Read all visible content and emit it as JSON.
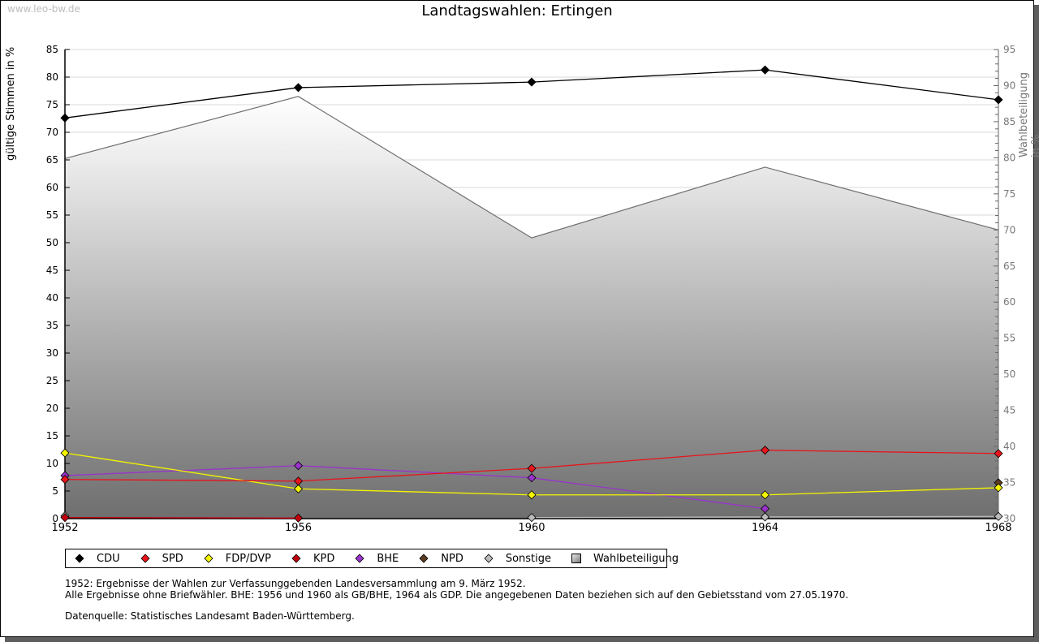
{
  "watermark": "www.leo-bw.de",
  "chart_data": {
    "type": "line",
    "title": "Landtagswahlen: Ertingen",
    "xlabel": "",
    "ylabel": "gültige Stimmen in %",
    "ylabel_right": "Wahlbeteiligung in %",
    "categories": [
      "1952",
      "1956",
      "1960",
      "1964",
      "1968"
    ],
    "ylim": [
      0,
      85
    ],
    "ylim_right": [
      30,
      95
    ],
    "yticks": [
      0,
      5,
      10,
      15,
      20,
      25,
      30,
      35,
      40,
      45,
      50,
      55,
      60,
      65,
      70,
      75,
      80,
      85
    ],
    "yticks_right": [
      30,
      35,
      40,
      45,
      50,
      55,
      60,
      65,
      70,
      75,
      80,
      85,
      90,
      95
    ],
    "grid": true,
    "legend_position": "bottom",
    "series": [
      {
        "name": "Wahlbeteiligung",
        "axis": "right",
        "kind": "area",
        "color": "#808080",
        "values": [
          79.9,
          88.5,
          68.9,
          78.7,
          70.0
        ]
      },
      {
        "name": "CDU",
        "axis": "left",
        "color": "#000000",
        "values": [
          72.6,
          78.1,
          79.1,
          81.3,
          75.9
        ]
      },
      {
        "name": "SPD",
        "axis": "left",
        "color": "#e8141c",
        "values": [
          7.1,
          6.8,
          9.1,
          12.4,
          11.8
        ]
      },
      {
        "name": "FDP/DVP",
        "axis": "left",
        "color": "#f5f500",
        "values": [
          11.9,
          5.4,
          4.3,
          4.3,
          5.6
        ]
      },
      {
        "name": "KPD",
        "axis": "left",
        "color": "#c40010",
        "values": [
          0.2,
          0.1,
          null,
          null,
          null
        ]
      },
      {
        "name": "BHE",
        "axis": "left",
        "color": "#9933cc",
        "values": [
          7.8,
          9.6,
          7.4,
          1.8,
          null
        ]
      },
      {
        "name": "NPD",
        "axis": "left",
        "color": "#5c3d24",
        "values": [
          null,
          null,
          null,
          null,
          6.5
        ]
      },
      {
        "name": "Sonstige",
        "axis": "left",
        "color": "#bbbbbb",
        "values": [
          0.5,
          null,
          0.2,
          0.3,
          0.4
        ]
      }
    ]
  },
  "legend": [
    {
      "label": "CDU",
      "color": "#000000",
      "shape": "diamond"
    },
    {
      "label": "SPD",
      "color": "#e8141c",
      "shape": "diamond"
    },
    {
      "label": "FDP/DVP",
      "color": "#f5f500",
      "shape": "diamond"
    },
    {
      "label": "KPD",
      "color": "#c40010",
      "shape": "diamond"
    },
    {
      "label": "BHE",
      "color": "#9933cc",
      "shape": "diamond"
    },
    {
      "label": "NPD",
      "color": "#5c3d24",
      "shape": "diamond"
    },
    {
      "label": "Sonstige",
      "color": "#bbbbbb",
      "shape": "diamond"
    },
    {
      "label": "Wahlbeteiligung",
      "color": "#999999",
      "shape": "square"
    }
  ],
  "notes": [
    "1952: Ergebnisse der Wahlen zur Verfassunggebenden Landesversammlung am 9. März 1952.",
    "Alle Ergebnisse ohne Briefwähler. BHE: 1956 und 1960 als GB/BHE, 1964 als GDP. Die angegebenen Daten beziehen sich auf den Gebietsstand vom 27.05.1970.",
    "Datenquelle: Statistisches Landesamt Baden-Württemberg."
  ]
}
